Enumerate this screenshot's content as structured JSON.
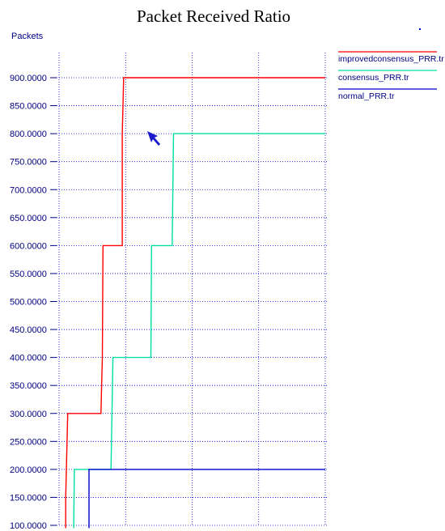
{
  "chart_data": {
    "type": "line",
    "title": "Packet Received Ratio",
    "ylabel": "Packets",
    "xlabel": "",
    "ylim": [
      95,
      930
    ],
    "xlim": [
      0,
      41
    ],
    "yticks": [
      100,
      150,
      200,
      250,
      300,
      350,
      400,
      450,
      500,
      550,
      600,
      650,
      700,
      750,
      800,
      850,
      900
    ],
    "ytick_labels": [
      "100.0000",
      "150.0000",
      "200.0000",
      "250.0000",
      "300.0000",
      "350.0000",
      "400.0000",
      "450.0000",
      "500.0000",
      "550.0000",
      "600.0000",
      "650.0000",
      "700.0000",
      "750.0000",
      "800.0000",
      "850.0000",
      "900.0000"
    ],
    "xgrid": [
      0,
      10,
      20,
      30,
      40
    ],
    "grid": true,
    "legend_position": "right",
    "series": [
      {
        "name": "improvedconsensus_PRR.tr",
        "color": "#ff0000",
        "x": [
          1.0,
          1.0,
          1.3,
          6.3,
          6.4,
          6.5,
          6.6,
          9.5,
          9.5,
          9.6,
          9.7,
          40.0
        ],
        "y": [
          95,
          150,
          300,
          300,
          350,
          400,
          600,
          600,
          800,
          850,
          900,
          900
        ]
      },
      {
        "name": "consensus_PRR.tr",
        "color": "#00e0a0",
        "x": [
          2.2,
          2.3,
          4.5,
          7.8,
          8.1,
          13.8,
          13.9,
          17.0,
          17.2,
          40.0
        ],
        "y": [
          95,
          200,
          200,
          200,
          400,
          400,
          600,
          600,
          800,
          800
        ]
      },
      {
        "name": "normal_PRR.tr",
        "color": "#0000cc",
        "x": [
          4.5,
          4.5,
          40.0
        ],
        "y": [
          95,
          200,
          200
        ]
      }
    ]
  }
}
